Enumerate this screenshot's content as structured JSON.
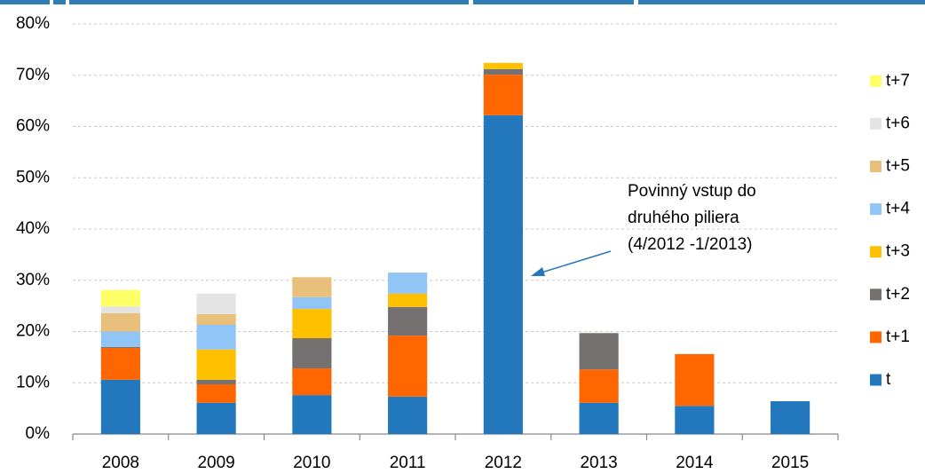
{
  "chart_data": {
    "type": "stacked_bar",
    "categories": [
      "2008",
      "2009",
      "2010",
      "2011",
      "2012",
      "2013",
      "2014",
      "2015"
    ],
    "series": [
      {
        "name": "t",
        "color": "#2277bd",
        "values": [
          10.6,
          6.1,
          7.6,
          7.3,
          62.2,
          6.1,
          5.5,
          6.4
        ]
      },
      {
        "name": "t+1",
        "color": "#ff6600",
        "values": [
          6.2,
          3.6,
          5.2,
          11.9,
          7.9,
          6.5,
          10.1,
          null
        ]
      },
      {
        "name": "t+2",
        "color": "#767171",
        "values": [
          0.2,
          0.9,
          5.9,
          5.6,
          1.1,
          7.1,
          null,
          null
        ]
      },
      {
        "name": "t+3",
        "color": "#ffc000",
        "values": [
          null,
          5.9,
          5.7,
          2.6,
          1.2,
          null,
          null,
          null
        ]
      },
      {
        "name": "t+4",
        "color": "#90c5f6",
        "values": [
          3.0,
          4.8,
          2.3,
          4.1,
          null,
          null,
          null,
          null
        ]
      },
      {
        "name": "t+5",
        "color": "#e9bf7c",
        "values": [
          3.6,
          2.1,
          3.9,
          null,
          null,
          null,
          null,
          null
        ]
      },
      {
        "name": "t+6",
        "color": "#e4e4e4",
        "values": [
          1.3,
          4.0,
          null,
          null,
          null,
          null,
          null,
          null
        ]
      },
      {
        "name": "t+7",
        "color": "#ffff66",
        "values": [
          3.2,
          null,
          null,
          null,
          null,
          null,
          null,
          null
        ]
      }
    ],
    "ylim": [
      0,
      80
    ],
    "yticks": [
      {
        "value": 0,
        "label": "0%"
      },
      {
        "value": 10,
        "label": "10%"
      },
      {
        "value": 20,
        "label": "20%"
      },
      {
        "value": 30,
        "label": "30%"
      },
      {
        "value": 40,
        "label": "40%"
      },
      {
        "value": 50,
        "label": "50%"
      },
      {
        "value": 60,
        "label": "60%"
      },
      {
        "value": 70,
        "label": "70%"
      },
      {
        "value": 80,
        "label": "80%"
      }
    ],
    "grid": true,
    "legend": "right",
    "annotation": [
      "Povinný vstup do",
      "druhého piliera",
      "(4/2012 -1/2013)"
    ]
  }
}
